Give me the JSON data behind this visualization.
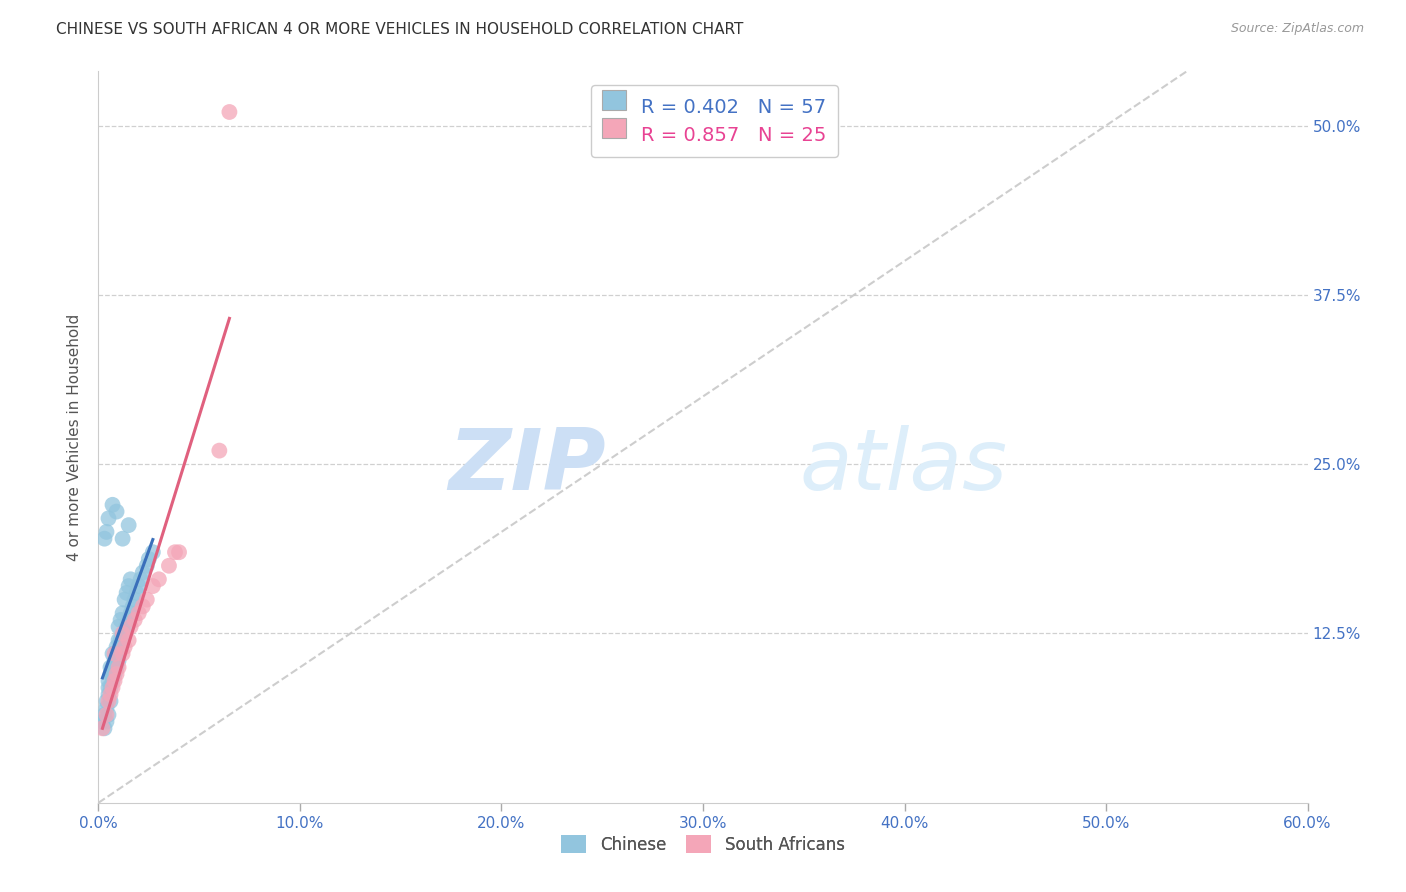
{
  "title": "CHINESE VS SOUTH AFRICAN 4 OR MORE VEHICLES IN HOUSEHOLD CORRELATION CHART",
  "source": "Source: ZipAtlas.com",
  "ylabel": "4 or more Vehicles in Household",
  "xlim": [
    0.0,
    0.6
  ],
  "ylim": [
    0.0,
    0.54
  ],
  "xtick_labels": [
    "0.0%",
    "10.0%",
    "20.0%",
    "30.0%",
    "40.0%",
    "50.0%",
    "60.0%"
  ],
  "xtick_values": [
    0.0,
    0.1,
    0.2,
    0.3,
    0.4,
    0.5,
    0.6
  ],
  "ytick_labels": [
    "12.5%",
    "25.0%",
    "37.5%",
    "50.0%"
  ],
  "ytick_values": [
    0.125,
    0.25,
    0.375,
    0.5
  ],
  "chinese_color": "#92c5de",
  "sa_color": "#f4a6b8",
  "chinese_line_color": "#3a6fba",
  "sa_line_color": "#e0607e",
  "diagonal_color": "#c8c8c8",
  "watermark_zip": "ZIP",
  "watermark_atlas": "atlas",
  "legend_r_chinese": "R = 0.402",
  "legend_n_chinese": "N = 57",
  "legend_r_sa": "R = 0.857",
  "legend_n_sa": "N = 25",
  "legend_color_r": "#4472c4",
  "legend_color_n": "#4472c4",
  "legend_color_r_sa": "#e84393",
  "legend_color_n_sa": "#e84393",
  "background_color": "#ffffff",
  "grid_color": "#d0d0d0",
  "chinese_x": [
    0.002,
    0.003,
    0.003,
    0.004,
    0.004,
    0.004,
    0.005,
    0.005,
    0.005,
    0.005,
    0.006,
    0.006,
    0.006,
    0.006,
    0.007,
    0.007,
    0.007,
    0.007,
    0.008,
    0.008,
    0.008,
    0.009,
    0.009,
    0.009,
    0.01,
    0.01,
    0.01,
    0.01,
    0.011,
    0.011,
    0.011,
    0.012,
    0.012,
    0.013,
    0.013,
    0.014,
    0.014,
    0.015,
    0.015,
    0.016,
    0.016,
    0.017,
    0.018,
    0.019,
    0.02,
    0.021,
    0.022,
    0.024,
    0.025,
    0.027,
    0.003,
    0.004,
    0.005,
    0.007,
    0.009,
    0.012,
    0.015
  ],
  "chinese_y": [
    0.06,
    0.055,
    0.065,
    0.06,
    0.07,
    0.075,
    0.065,
    0.08,
    0.085,
    0.09,
    0.075,
    0.085,
    0.095,
    0.1,
    0.09,
    0.095,
    0.1,
    0.11,
    0.095,
    0.1,
    0.105,
    0.1,
    0.11,
    0.115,
    0.105,
    0.11,
    0.12,
    0.13,
    0.115,
    0.12,
    0.135,
    0.12,
    0.14,
    0.125,
    0.15,
    0.13,
    0.155,
    0.135,
    0.16,
    0.14,
    0.165,
    0.145,
    0.15,
    0.155,
    0.16,
    0.165,
    0.17,
    0.175,
    0.18,
    0.185,
    0.195,
    0.2,
    0.21,
    0.22,
    0.215,
    0.195,
    0.205
  ],
  "sa_x": [
    0.002,
    0.004,
    0.005,
    0.006,
    0.007,
    0.008,
    0.009,
    0.01,
    0.012,
    0.013,
    0.015,
    0.016,
    0.018,
    0.02,
    0.022,
    0.024,
    0.027,
    0.03,
    0.035,
    0.038,
    0.04,
    0.06,
    0.065,
    0.012,
    0.008
  ],
  "sa_y": [
    0.055,
    0.065,
    0.075,
    0.08,
    0.085,
    0.09,
    0.095,
    0.1,
    0.11,
    0.115,
    0.12,
    0.13,
    0.135,
    0.14,
    0.145,
    0.15,
    0.16,
    0.165,
    0.175,
    0.185,
    0.185,
    0.26,
    0.51,
    0.125,
    0.11
  ]
}
